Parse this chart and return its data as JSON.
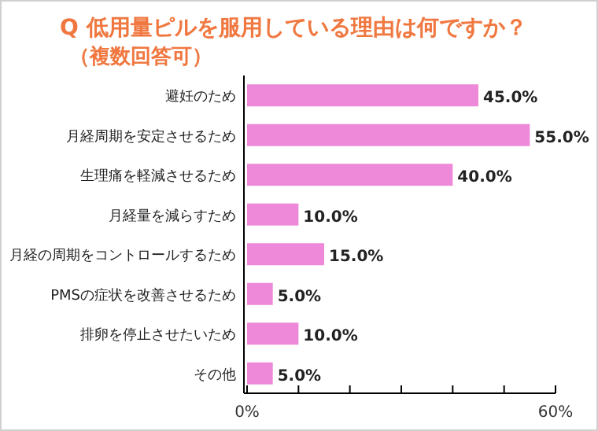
{
  "chart_data": {
    "type": "bar",
    "orientation": "horizontal",
    "title": "Q 低用量ピルを服用している理由は何ですか？",
    "subtitle": "（複数回答可）",
    "categories": [
      "避妊のため",
      "月経周期を安定させるため",
      "生理痛を軽減させるため",
      "月経量を減らすため",
      "月経の周期をコントロールするため",
      "PMSの症状を改善させるため",
      "排卵を停止させたいため",
      "その他"
    ],
    "values": [
      45,
      55,
      40,
      10,
      15,
      5,
      10,
      5
    ],
    "value_labels": [
      "45.0%",
      "55.0%",
      "40.0%",
      "10.0%",
      "15.0%",
      "5.0%",
      "10.0%",
      "5.0%"
    ],
    "color": "#ee88d8",
    "xlim": [
      0,
      60
    ],
    "xticks": [
      {
        "value": 0,
        "label": "0%"
      },
      {
        "value": 10,
        "label": null
      },
      {
        "value": 20,
        "label": null
      },
      {
        "value": 30,
        "label": null
      },
      {
        "value": 40,
        "label": null
      },
      {
        "value": 50,
        "label": null
      },
      {
        "value": 60,
        "label": "60%"
      }
    ],
    "grid": false
  }
}
